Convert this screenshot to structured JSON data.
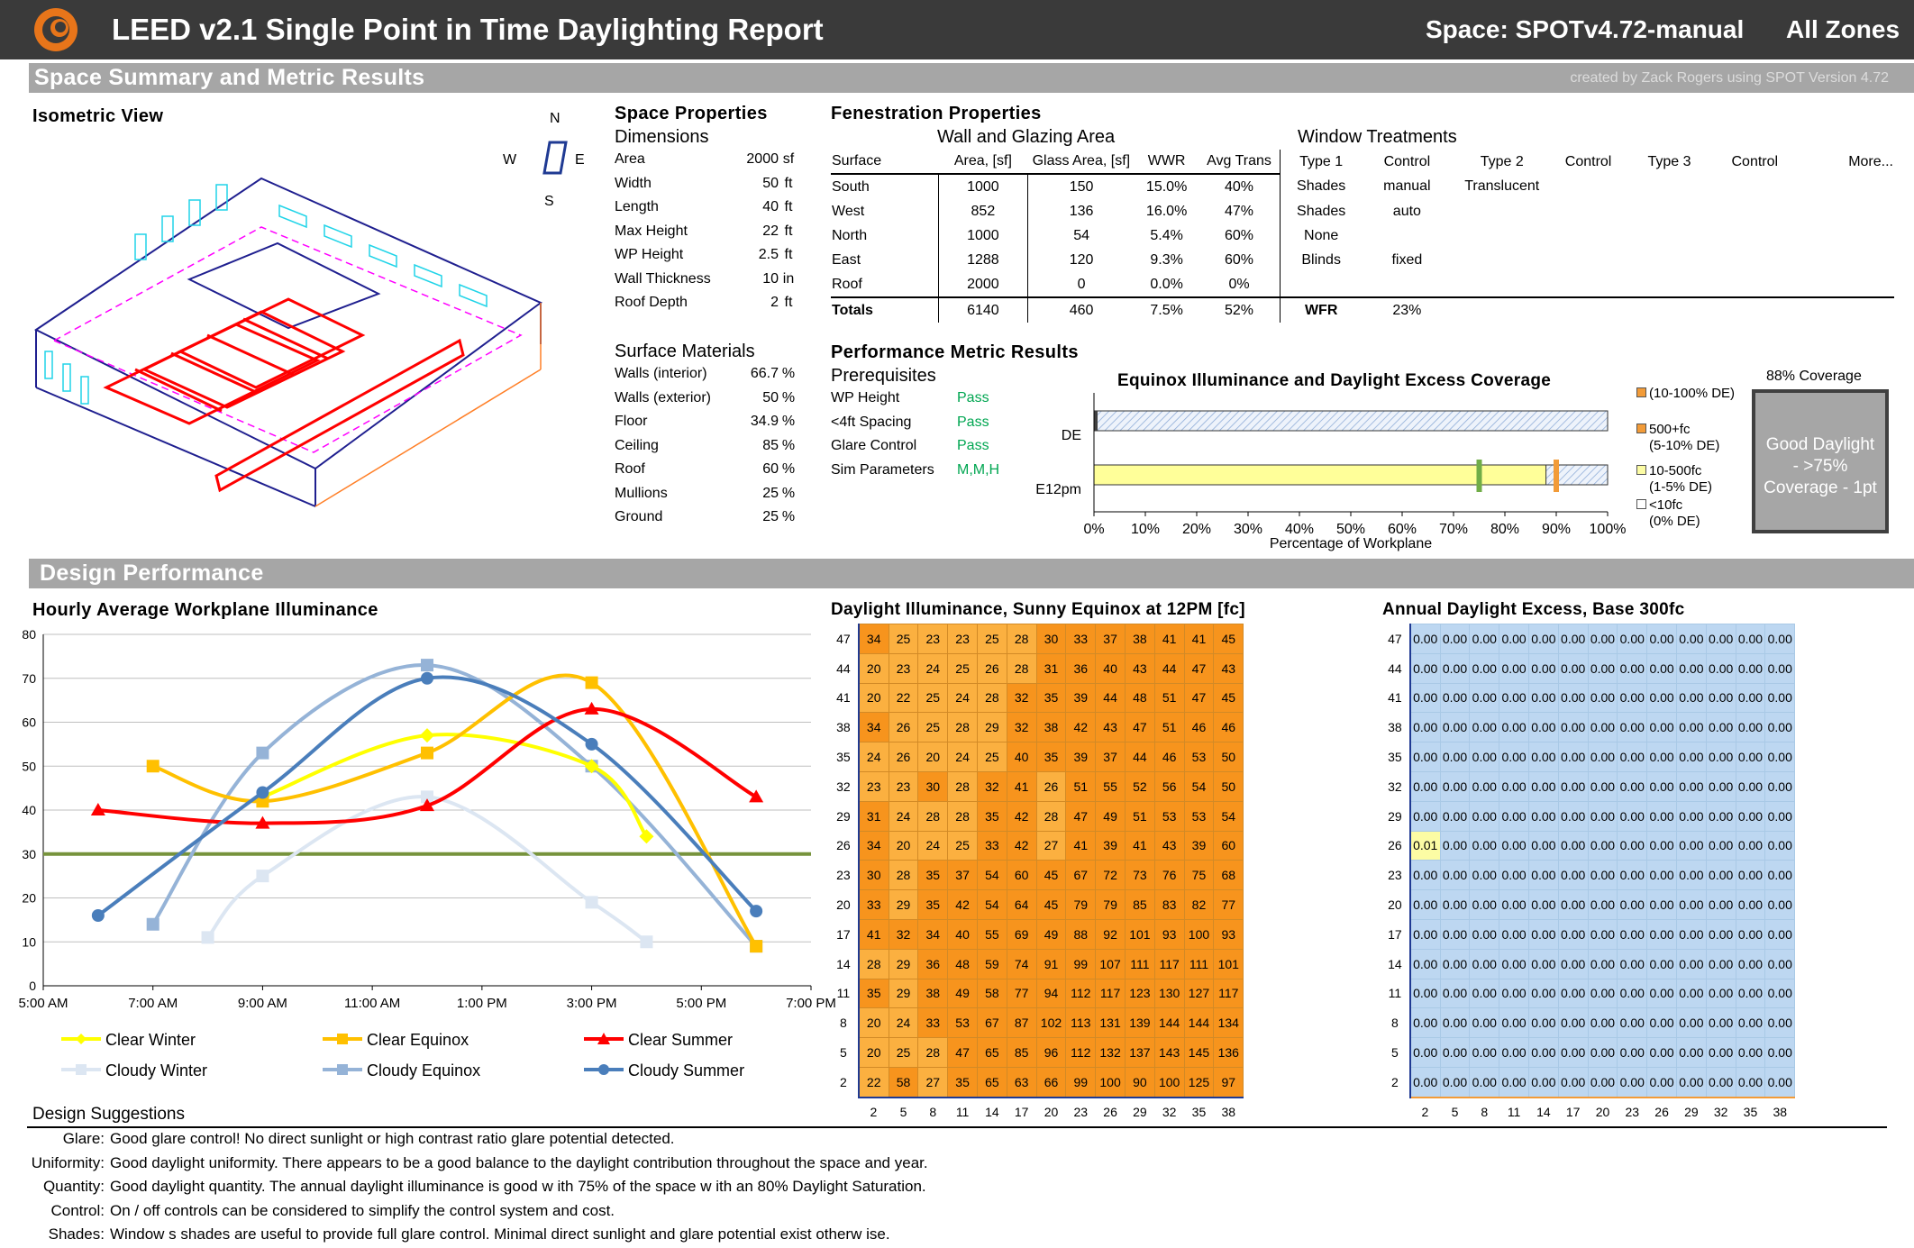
{
  "header": {
    "title": "LEED v2.1 Single Point in Time Daylighting Report",
    "space": "Space: SPOTv4.72-manual",
    "zones": "All Zones"
  },
  "bands": {
    "summary": "Space Summary and Metric Results",
    "credit": "created by Zack Rogers using SPOT Version 4.72",
    "design": "Design Performance"
  },
  "iso": {
    "title": "Isometric View",
    "compass": {
      "n": "N",
      "s": "S",
      "e": "E",
      "w": "W"
    }
  },
  "space_props": {
    "title": "Space Properties",
    "dims_title": "Dimensions",
    "dims": [
      {
        "label": "Area",
        "value": "2000",
        "unit": "sf"
      },
      {
        "label": "Width",
        "value": "50",
        "unit": "ft"
      },
      {
        "label": "Length",
        "value": "40",
        "unit": "ft"
      },
      {
        "label": "Max Height",
        "value": "22",
        "unit": "ft"
      },
      {
        "label": "WP Height",
        "value": "2.5",
        "unit": "ft"
      },
      {
        "label": "Wall Thickness",
        "value": "10",
        "unit": "in"
      },
      {
        "label": "Roof Depth",
        "value": "2",
        "unit": "ft"
      }
    ],
    "mat_title": "Surface Materials",
    "materials": [
      {
        "label": "Walls (interior)",
        "value": "66.7",
        "unit": "%"
      },
      {
        "label": "Walls (exterior)",
        "value": "50",
        "unit": "%"
      },
      {
        "label": "Floor",
        "value": "34.9",
        "unit": "%"
      },
      {
        "label": "Ceiling",
        "value": "85",
        "unit": "%"
      },
      {
        "label": "Roof",
        "value": "60",
        "unit": "%"
      },
      {
        "label": "Mullions",
        "value": "25",
        "unit": "%"
      },
      {
        "label": "Ground",
        "value": "25",
        "unit": "%"
      }
    ]
  },
  "fenestration": {
    "title": "Fenestration Properties",
    "wall_title": "Wall and Glazing Area",
    "treat_title": "Window Treatments",
    "headers": [
      "Surface",
      "Area, [sf]",
      "Glass Area, [sf]",
      "WWR",
      "Avg Trans",
      "Type 1",
      "Control",
      "Type 2",
      "Control",
      "Type 3",
      "Control",
      "More..."
    ],
    "rows": [
      [
        "South",
        "1000",
        "150",
        "15.0%",
        "40%",
        "Shades",
        "manual",
        "Translucent"
      ],
      [
        "West",
        "852",
        "136",
        "16.0%",
        "47%",
        "Shades",
        "auto",
        ""
      ],
      [
        "North",
        "1000",
        "54",
        "5.4%",
        "60%",
        "None",
        "",
        ""
      ],
      [
        "East",
        "1288",
        "120",
        "9.3%",
        "60%",
        "Blinds",
        "fixed",
        ""
      ],
      [
        "Roof",
        "2000",
        "0",
        "0.0%",
        "0%",
        "",
        "",
        ""
      ]
    ],
    "totals": [
      "Totals",
      "6140",
      "460",
      "7.5%",
      "52%",
      "WFR",
      "23%"
    ]
  },
  "performance": {
    "title": "Performance Metric Results",
    "prereq_title": "Prerequisites",
    "prereqs": [
      {
        "label": "WP Height",
        "value": "Pass"
      },
      {
        "label": "<4ft Spacing",
        "value": "Pass"
      },
      {
        "label": "Glare Control",
        "value": "Pass"
      },
      {
        "label": "Sim Parameters",
        "value": "M,M,H"
      }
    ]
  },
  "coverage_chart": {
    "title": "Equinox Illuminance and Daylight Excess  Coverage",
    "rows": [
      "DE",
      "E12pm"
    ],
    "xticks": [
      "0%",
      "10%",
      "20%",
      "30%",
      "40%",
      "50%",
      "60%",
      "70%",
      "80%",
      "90%",
      "100%"
    ],
    "xlabel": "Percentage of Workplane",
    "legend": [
      {
        "label": "(10-100% DE)",
        "sub": "",
        "color": "#f29b38"
      },
      {
        "label": "500+fc",
        "sub": "(5-10% DE)",
        "color": "#f29b38"
      },
      {
        "label": "10-500fc",
        "sub": "(1-5% DE)",
        "color": "#fcfca4"
      },
      {
        "label": "<10fc",
        "sub": "(0% DE)",
        "color": "#ffffff"
      }
    ],
    "coverage_title": "88% Coverage",
    "score_line1": "Good Daylight",
    "score_line2": "- >75%",
    "score_line3": "Coverage  - 1pt"
  },
  "chart_data": [
    {
      "type": "line",
      "title": "Hourly Average Workplane Illuminance",
      "x": [
        "5:00 AM",
        "7:00 AM",
        "9:00 AM",
        "11:00 AM",
        "1:00 PM",
        "3:00 PM",
        "5:00 PM",
        "7:00 PM"
      ],
      "ylim": [
        0,
        80
      ],
      "yticks": [
        0,
        10,
        20,
        30,
        40,
        50,
        60,
        70,
        80
      ],
      "threshold": 30,
      "series": [
        {
          "name": "Clear Winter",
          "color": "#ffff00",
          "marker": "diamond",
          "points": [
            [
              9,
              43
            ],
            [
              12,
              57
            ],
            [
              15,
              50
            ],
            [
              16,
              34
            ]
          ]
        },
        {
          "name": "Clear Equinox",
          "color": "#ffc000",
          "marker": "square",
          "points": [
            [
              7,
              50
            ],
            [
              9,
              42
            ],
            [
              12,
              53
            ],
            [
              15,
              69
            ],
            [
              18,
              9
            ]
          ]
        },
        {
          "name": "Clear Summer",
          "color": "#ff0000",
          "marker": "triangle",
          "points": [
            [
              6,
              40
            ],
            [
              9,
              37
            ],
            [
              12,
              41
            ],
            [
              15,
              63
            ],
            [
              18,
              43
            ]
          ]
        },
        {
          "name": "Cloudy Winter",
          "color": "#dce6f2",
          "marker": "square",
          "points": [
            [
              8,
              11
            ],
            [
              9,
              25
            ],
            [
              12,
              43
            ],
            [
              15,
              19
            ],
            [
              16,
              10
            ]
          ]
        },
        {
          "name": "Cloudy Equinox",
          "color": "#95b3d7",
          "marker": "square",
          "points": [
            [
              7,
              14
            ],
            [
              9,
              53
            ],
            [
              12,
              73
            ],
            [
              15,
              50
            ],
            [
              18,
              9
            ]
          ]
        },
        {
          "name": "Cloudy Summer",
          "color": "#4a7ebb",
          "marker": "circle",
          "points": [
            [
              6,
              16
            ],
            [
              9,
              44
            ],
            [
              12,
              70
            ],
            [
              15,
              55
            ],
            [
              18,
              17
            ]
          ]
        }
      ]
    },
    {
      "type": "heatmap",
      "title": "Daylight Illuminance, Sunny Equinox at 12PM [fc]",
      "xlabels": [
        "2",
        "5",
        "8",
        "11",
        "14",
        "17",
        "20",
        "23",
        "26",
        "29",
        "32",
        "35",
        "38"
      ],
      "ylabels": [
        "47",
        "44",
        "41",
        "38",
        "35",
        "32",
        "29",
        "26",
        "23",
        "20",
        "17",
        "14",
        "11",
        "8",
        "5",
        "2"
      ],
      "values": [
        [
          34,
          25,
          23,
          23,
          25,
          28,
          30,
          33,
          37,
          38,
          41,
          41,
          45
        ],
        [
          20,
          23,
          24,
          25,
          26,
          28,
          31,
          36,
          40,
          43,
          44,
          47,
          43
        ],
        [
          20,
          22,
          25,
          24,
          28,
          32,
          35,
          39,
          44,
          48,
          51,
          47,
          45
        ],
        [
          34,
          26,
          25,
          28,
          29,
          32,
          38,
          42,
          43,
          47,
          51,
          46,
          46
        ],
        [
          24,
          26,
          20,
          24,
          25,
          40,
          35,
          39,
          37,
          44,
          46,
          53,
          50
        ],
        [
          23,
          23,
          30,
          28,
          32,
          41,
          26,
          51,
          55,
          52,
          56,
          54,
          50
        ],
        [
          31,
          24,
          28,
          28,
          35,
          42,
          28,
          47,
          49,
          51,
          53,
          53,
          54
        ],
        [
          34,
          20,
          24,
          25,
          33,
          42,
          27,
          41,
          39,
          41,
          43,
          39,
          60
        ],
        [
          30,
          28,
          35,
          37,
          54,
          60,
          45,
          67,
          72,
          73,
          76,
          75,
          68
        ],
        [
          33,
          29,
          35,
          42,
          54,
          64,
          45,
          79,
          79,
          85,
          83,
          82,
          77
        ],
        [
          41,
          32,
          34,
          40,
          55,
          69,
          49,
          88,
          92,
          101,
          93,
          100,
          93
        ],
        [
          28,
          29,
          36,
          48,
          59,
          74,
          91,
          99,
          107,
          111,
          117,
          111,
          101
        ],
        [
          35,
          29,
          38,
          49,
          58,
          77,
          94,
          112,
          117,
          123,
          130,
          127,
          117
        ],
        [
          20,
          24,
          33,
          53,
          67,
          87,
          102,
          113,
          131,
          139,
          144,
          144,
          134
        ],
        [
          20,
          25,
          28,
          47,
          65,
          85,
          96,
          112,
          132,
          137,
          143,
          145,
          136
        ],
        [
          22,
          58,
          27,
          35,
          65,
          63,
          66,
          99,
          100,
          90,
          100,
          125,
          97
        ]
      ]
    },
    {
      "type": "heatmap",
      "title": "Annual Daylight Excess, Base 300fc",
      "xlabels": [
        "2",
        "5",
        "8",
        "11",
        "14",
        "17",
        "20",
        "23",
        "26",
        "29",
        "32",
        "35",
        "38"
      ],
      "ylabels": [
        "47",
        "44",
        "41",
        "38",
        "35",
        "32",
        "29",
        "26",
        "23",
        "20",
        "17",
        "14",
        "11",
        "8",
        "5",
        "2"
      ],
      "fill": "0.00",
      "exceptions": [
        {
          "row": 7,
          "col": 0,
          "value": "0.01"
        }
      ]
    }
  ],
  "legend": {
    "clear_winter": "Clear Winter",
    "clear_equinox": "Clear Equinox",
    "clear_summer": "Clear Summer",
    "cloudy_winter": "Cloudy Winter",
    "cloudy_equinox": "Cloudy Equinox",
    "cloudy_summer": "Cloudy Summer"
  },
  "suggestions": {
    "title": "Design Suggestions",
    "items": [
      {
        "label": "Glare:",
        "text": "Good glare control!  No direct sunlight or high contrast ratio glare potential detected."
      },
      {
        "label": "Uniformity:",
        "text": "Good daylight uniformity.  There appears to be a good balance to the daylight contribution throughout the space and year."
      },
      {
        "label": "Quantity:",
        "text": "Good daylight quantity.  The annual daylight illuminance is good w ith 75% of the space w ith an 80% Daylight Saturation."
      },
      {
        "label": "Control:",
        "text": "On / off controls can be considered to simplify the control system and cost."
      },
      {
        "label": "Shades:",
        "text": "Window s shades are useful to provide full glare control.  Minimal direct sunlight and glare potential exist otherw ise."
      }
    ]
  }
}
